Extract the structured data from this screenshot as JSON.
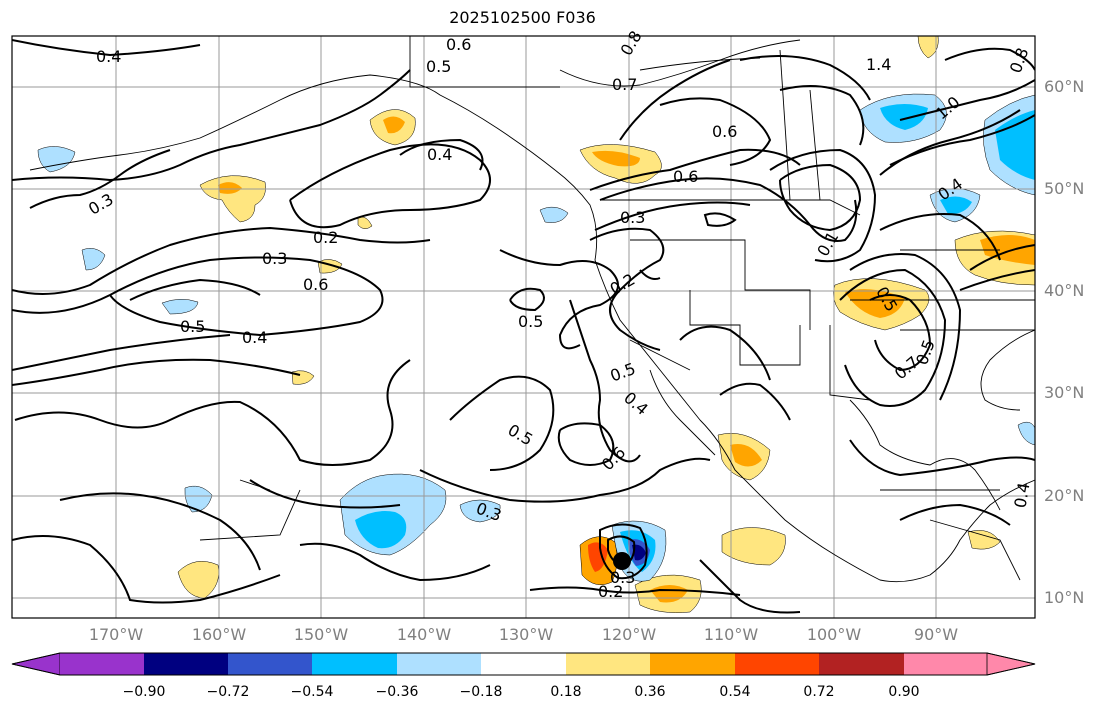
{
  "title": "2025102500 F036",
  "lat_labels": [
    "60°N",
    "50°N",
    "40°N",
    "30°N",
    "20°N",
    "10°N"
  ],
  "lon_labels": [
    "170°W",
    "160°W",
    "150°W",
    "140°W",
    "130°W",
    "120°W",
    "110°W",
    "100°W",
    "90°W"
  ],
  "colorbar": {
    "ticks": [
      "−0.90",
      "−0.72",
      "−0.54",
      "−0.36",
      "−0.18",
      "0.18",
      "0.36",
      "0.54",
      "0.72",
      "0.90"
    ],
    "colors": [
      "#9933cc",
      "#000080",
      "#3355cc",
      "#00bfff",
      "#aee0ff",
      "#ffffff",
      "#ffe680",
      "#ffa500",
      "#ff4500",
      "#b22222",
      "#ff88aa"
    ]
  },
  "contour_labels": [
    "0.4",
    "0.6",
    "0.5",
    "0.8",
    "0.7",
    "1.4",
    "1.0",
    "0.8",
    "0.4",
    "0.6",
    "0.6",
    "0.3",
    "0.4",
    "0.2",
    "0.3",
    "0.6",
    "0.3",
    "0.2",
    "0.5",
    "0.4",
    "0.5",
    "0.5",
    "0.4",
    "0.5",
    "0.6",
    "0.3",
    "0.3",
    "0.2",
    "0.1",
    "0.7",
    "0.4",
    "0.5",
    "0.5"
  ],
  "colors": {
    "shade_pos_light": "#ffe680",
    "shade_pos_mid": "#ffa500",
    "shade_pos_strong": "#ff4500",
    "shade_neg_light": "#aee0ff",
    "shade_neg_mid": "#00bfff",
    "shade_neg_strong": "#3355cc",
    "shade_neg_max": "#000080"
  }
}
